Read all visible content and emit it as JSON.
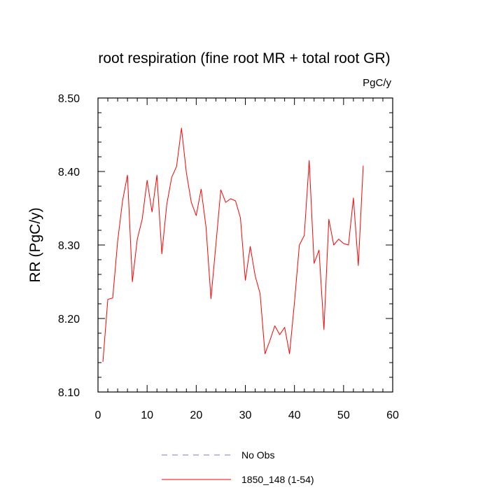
{
  "chart_data": {
    "type": "line",
    "title": "root respiration (fine root MR + total root GR)",
    "units": "PgC/y",
    "ylabel": "RR  (PgC/y)",
    "xlabel": "",
    "xlim": [
      0,
      60
    ],
    "ylim": [
      8.1,
      8.5
    ],
    "xticks": [
      "0",
      "10",
      "20",
      "30",
      "40",
      "50",
      "60"
    ],
    "yticks": [
      "8.10",
      "8.20",
      "8.30",
      "8.40",
      "8.50"
    ],
    "grid": false,
    "legend": "bottom-center",
    "series": [
      {
        "name": "No Obs",
        "color": "#7b7bd6",
        "style": "dashed",
        "values": []
      },
      {
        "name": "1850_148 (1-54)",
        "color": "#ff0000",
        "style": "solid",
        "x": [
          1,
          2,
          3,
          4,
          5,
          6,
          7,
          8,
          9,
          10,
          11,
          12,
          13,
          14,
          15,
          16,
          17,
          18,
          19,
          20,
          21,
          22,
          23,
          24,
          25,
          26,
          27,
          28,
          29,
          30,
          31,
          32,
          33,
          34,
          35,
          36,
          37,
          38,
          39,
          40,
          41,
          42,
          43,
          44,
          45,
          46,
          47,
          48,
          49,
          50,
          51,
          52,
          53,
          54
        ],
        "values": [
          8.141,
          8.226,
          8.228,
          8.305,
          8.36,
          8.395,
          8.25,
          8.308,
          8.335,
          8.388,
          8.345,
          8.395,
          8.288,
          8.355,
          8.392,
          8.407,
          8.459,
          8.398,
          8.358,
          8.34,
          8.376,
          8.324,
          8.227,
          8.3,
          8.375,
          8.358,
          8.363,
          8.36,
          8.337,
          8.252,
          8.298,
          8.258,
          8.234,
          8.152,
          8.17,
          8.19,
          8.178,
          8.188,
          8.152,
          8.222,
          8.3,
          8.313,
          8.415,
          8.275,
          8.293,
          8.185,
          8.335,
          8.3,
          8.308,
          8.302,
          8.3,
          8.364,
          8.272,
          8.408
        ]
      }
    ]
  }
}
